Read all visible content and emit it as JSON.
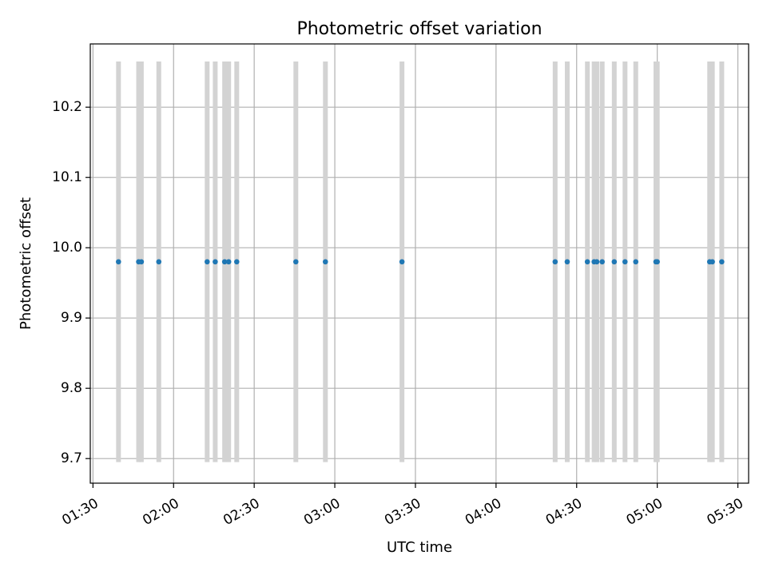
{
  "chart_data": {
    "type": "scatter",
    "title": "Photometric offset variation",
    "xlabel": "UTC time",
    "ylabel": "Photometric offset",
    "x_axis": "time",
    "xlim": [
      "01:29",
      "05:34"
    ],
    "ylim": [
      9.665,
      10.29
    ],
    "grid": true,
    "x_ticks": [
      "01:30",
      "02:00",
      "02:30",
      "03:00",
      "03:30",
      "04:00",
      "04:30",
      "05:00",
      "05:30"
    ],
    "y_ticks": [
      "9.7",
      "9.8",
      "9.9",
      "10.0",
      "10.1",
      "10.2"
    ],
    "y_tick_values": [
      9.7,
      9.8,
      9.9,
      10.0,
      10.1,
      10.2
    ],
    "band_range": [
      9.695,
      10.265
    ],
    "colors": {
      "points": "#1f77b4",
      "bands": "#d3d3d3",
      "grid": "#b0b0b0",
      "axes": "#000000"
    },
    "x": [
      "01:39:30",
      "01:47:00",
      "01:48:00",
      "01:54:30",
      "02:12:30",
      "02:15:30",
      "02:19:00",
      "02:20:30",
      "02:23:30",
      "02:45:30",
      "02:56:30",
      "03:25:00",
      "04:22:00",
      "04:26:30",
      "04:34:00",
      "04:36:30",
      "04:37:30",
      "04:39:30",
      "04:44:00",
      "04:48:00",
      "04:52:00",
      "04:59:30",
      "05:00:00",
      "05:19:30",
      "05:20:30",
      "05:24:00"
    ],
    "y": [
      9.98,
      9.98,
      9.98,
      9.98,
      9.98,
      9.98,
      9.98,
      9.98,
      9.98,
      9.98,
      9.98,
      9.98,
      9.98,
      9.98,
      9.98,
      9.98,
      9.98,
      9.98,
      9.98,
      9.98,
      9.98,
      9.98,
      9.98,
      9.98,
      9.98,
      9.98
    ]
  }
}
